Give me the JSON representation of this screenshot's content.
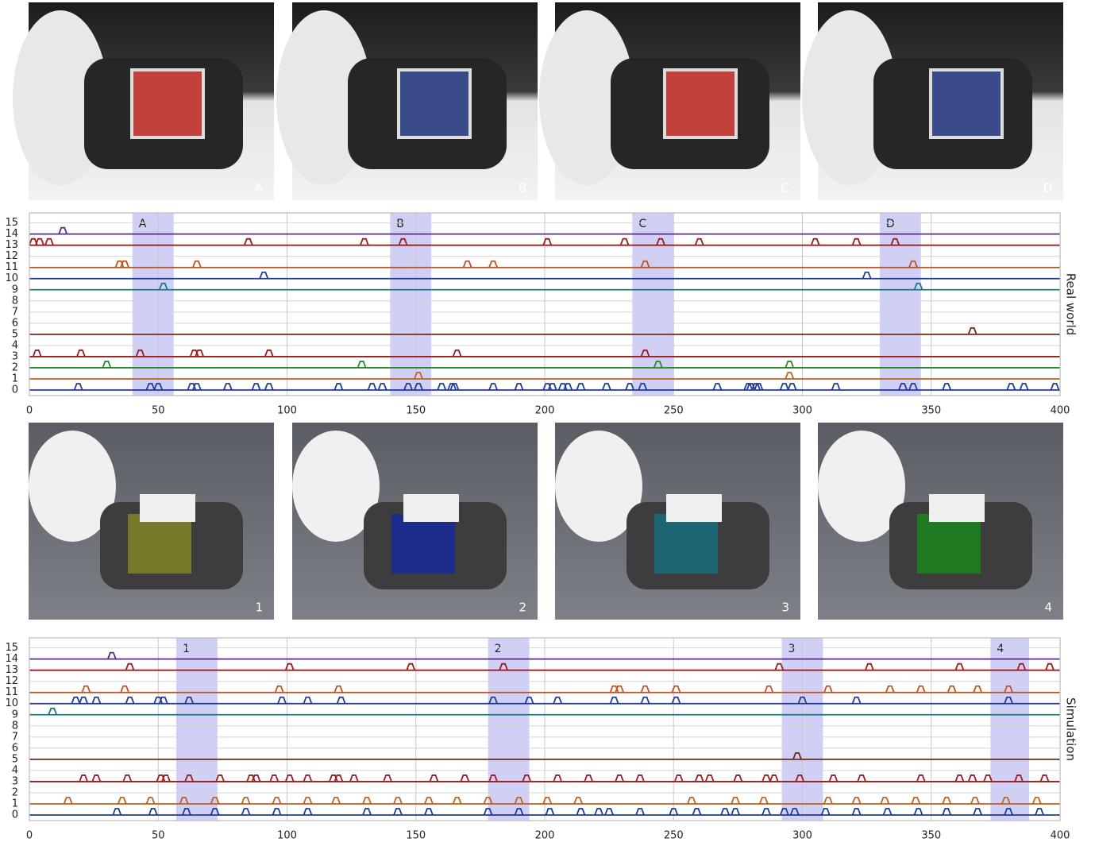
{
  "photos": {
    "labels": [
      "A",
      "B",
      "C",
      "D"
    ]
  },
  "renders": {
    "labels": [
      "1",
      "2",
      "3",
      "4"
    ]
  },
  "chart_data": [
    {
      "type": "raster",
      "side_label": "Real world",
      "xlim": [
        0,
        400
      ],
      "xticks": [
        0,
        50,
        100,
        150,
        200,
        250,
        300,
        350,
        400
      ],
      "ylim": [
        -0.5,
        15.9
      ],
      "yticks": [
        0,
        1,
        2,
        3,
        4,
        5,
        6,
        7,
        8,
        9,
        10,
        11,
        12,
        13,
        14,
        15
      ],
      "grid": true,
      "spans": [
        {
          "label": "A",
          "x": [
            40,
            56
          ]
        },
        {
          "label": "B",
          "x": [
            140,
            156
          ]
        },
        {
          "label": "C",
          "x": [
            234,
            250
          ]
        },
        {
          "label": "D",
          "x": [
            330,
            346
          ]
        }
      ],
      "span_color": "#c8c8f4",
      "series": [
        {
          "y": 14,
          "color": "#5b2a86",
          "x": [
            13
          ]
        },
        {
          "y": 13,
          "color": "#9b1c1c",
          "x": [
            1.5,
            4,
            7.7,
            85,
            130,
            145,
            201,
            231,
            245,
            260,
            305,
            321,
            336
          ]
        },
        {
          "y": 11,
          "color": "#c0501f",
          "x": [
            35,
            37,
            65,
            170,
            180,
            239,
            343
          ]
        },
        {
          "y": 10,
          "color": "#1f3a9a",
          "x": [
            91,
            325
          ]
        },
        {
          "y": 9,
          "color": "#1a7a80",
          "x": [
            52,
            345
          ]
        },
        {
          "y": 5,
          "color": "#6b2a14",
          "x": [
            366
          ]
        },
        {
          "y": 3,
          "color": "#9b1c1c",
          "x": [
            3,
            20,
            43,
            64,
            66,
            93,
            166,
            239
          ]
        },
        {
          "y": 2,
          "color": "#2a8a2a",
          "x": [
            30,
            129,
            244,
            295
          ]
        },
        {
          "y": 1,
          "color": "#c0601f",
          "x": [
            151,
            295
          ]
        },
        {
          "y": 0,
          "color": "#1f3a9a",
          "x": [
            19,
            47,
            50,
            63,
            65,
            77,
            88,
            93,
            120,
            133,
            137,
            147,
            151,
            160,
            164,
            165,
            180,
            190,
            201,
            203,
            207,
            209,
            214,
            224,
            233,
            238,
            267,
            279,
            280,
            282,
            283,
            293,
            296,
            313,
            339,
            343,
            356,
            381,
            386,
            398
          ]
        }
      ]
    },
    {
      "type": "raster",
      "side_label": "Simulation",
      "xlim": [
        0,
        400
      ],
      "xticks": [
        0,
        50,
        100,
        150,
        200,
        250,
        300,
        350,
        400
      ],
      "ylim": [
        -0.5,
        15.9
      ],
      "yticks": [
        0,
        1,
        2,
        3,
        4,
        5,
        6,
        7,
        8,
        9,
        10,
        11,
        12,
        13,
        14,
        15
      ],
      "grid": true,
      "spans": [
        {
          "label": "1",
          "x": [
            57,
            73
          ]
        },
        {
          "label": "2",
          "x": [
            178,
            194
          ]
        },
        {
          "label": "3",
          "x": [
            292,
            308
          ]
        },
        {
          "label": "4",
          "x": [
            373,
            388
          ]
        }
      ],
      "span_color": "#c8c8f4",
      "series": [
        {
          "y": 14,
          "color": "#5b2a86",
          "x": [
            32
          ]
        },
        {
          "y": 13,
          "color": "#9b1c1c",
          "x": [
            39,
            101,
            148,
            184,
            291,
            326,
            361,
            385,
            396
          ]
        },
        {
          "y": 11,
          "color": "#c0501f",
          "x": [
            22,
            37,
            97,
            120,
            227,
            229,
            239,
            251,
            287,
            310,
            334,
            346,
            358,
            368,
            380
          ]
        },
        {
          "y": 10,
          "color": "#1f3a9a",
          "x": [
            18,
            21,
            26,
            39,
            50,
            52,
            62,
            98,
            108,
            121,
            180,
            194,
            205,
            227,
            239,
            251,
            300,
            321,
            380
          ]
        },
        {
          "y": 9,
          "color": "#1a7a80",
          "x": [
            9
          ]
        },
        {
          "y": 5,
          "color": "#6b2a14",
          "x": [
            298
          ]
        },
        {
          "y": 3,
          "color": "#9b1c1c",
          "x": [
            21,
            26,
            38,
            51,
            53,
            62,
            74,
            86,
            88,
            95,
            101,
            108,
            118,
            120,
            126,
            139,
            157,
            169,
            180,
            193,
            205,
            217,
            229,
            237,
            252,
            260,
            264,
            275,
            286,
            289,
            299,
            312,
            323,
            346,
            361,
            366,
            372,
            384,
            394
          ]
        },
        {
          "y": 1,
          "color": "#c0601f",
          "x": [
            15,
            36,
            47,
            60,
            72,
            84,
            96,
            108,
            119,
            131,
            143,
            155,
            166,
            178,
            190,
            201,
            213,
            257,
            274,
            285,
            310,
            321,
            332,
            344,
            356,
            367,
            379,
            391
          ]
        },
        {
          "y": 0,
          "color": "#1f3a9a",
          "x": [
            34,
            48,
            61,
            72,
            84,
            96,
            108,
            131,
            143,
            155,
            178,
            190,
            202,
            214,
            221,
            225,
            237,
            250,
            259,
            270,
            274,
            286,
            293,
            297,
            309,
            321,
            333,
            345,
            356,
            368,
            380,
            392
          ]
        }
      ]
    }
  ]
}
